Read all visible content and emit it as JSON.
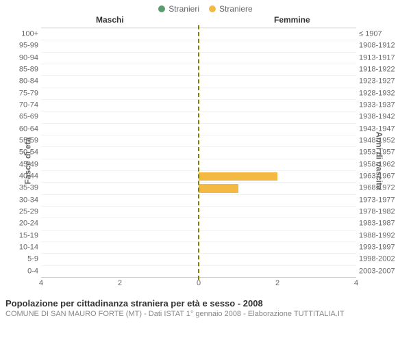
{
  "legend": {
    "male": {
      "label": "Stranieri",
      "color": "#5a9e6f"
    },
    "female": {
      "label": "Straniere",
      "color": "#f4b942"
    }
  },
  "headers": {
    "male": "Maschi",
    "female": "Femmine"
  },
  "axis_titles": {
    "left": "Fasce di età",
    "right": "Anni di nascita"
  },
  "chart": {
    "type": "population-pyramid",
    "x_max": 4,
    "x_ticks": [
      4,
      2,
      0,
      2,
      4
    ],
    "center_line_color": "#808000",
    "grid_color": "#f2f2f2",
    "background_color": "#ffffff",
    "bar_color_male": "#5a9e6f",
    "bar_color_female": "#f4b942",
    "label_fontsize": 11,
    "rows": [
      {
        "age": "100+",
        "birth": "≤ 1907",
        "m": 0,
        "f": 0
      },
      {
        "age": "95-99",
        "birth": "1908-1912",
        "m": 0,
        "f": 0
      },
      {
        "age": "90-94",
        "birth": "1913-1917",
        "m": 0,
        "f": 0
      },
      {
        "age": "85-89",
        "birth": "1918-1922",
        "m": 0,
        "f": 0
      },
      {
        "age": "80-84",
        "birth": "1923-1927",
        "m": 0,
        "f": 0
      },
      {
        "age": "75-79",
        "birth": "1928-1932",
        "m": 0,
        "f": 0
      },
      {
        "age": "70-74",
        "birth": "1933-1937",
        "m": 0,
        "f": 0
      },
      {
        "age": "65-69",
        "birth": "1938-1942",
        "m": 0,
        "f": 0
      },
      {
        "age": "60-64",
        "birth": "1943-1947",
        "m": 0,
        "f": 0
      },
      {
        "age": "55-59",
        "birth": "1948-1952",
        "m": 0,
        "f": 0
      },
      {
        "age": "50-54",
        "birth": "1953-1957",
        "m": 0,
        "f": 0
      },
      {
        "age": "45-49",
        "birth": "1958-1962",
        "m": 0,
        "f": 0
      },
      {
        "age": "40-44",
        "birth": "1963-1967",
        "m": 0,
        "f": 2
      },
      {
        "age": "35-39",
        "birth": "1968-1972",
        "m": 0,
        "f": 1
      },
      {
        "age": "30-34",
        "birth": "1973-1977",
        "m": 0,
        "f": 0
      },
      {
        "age": "25-29",
        "birth": "1978-1982",
        "m": 0,
        "f": 0
      },
      {
        "age": "20-24",
        "birth": "1983-1987",
        "m": 0,
        "f": 0
      },
      {
        "age": "15-19",
        "birth": "1988-1992",
        "m": 0,
        "f": 0
      },
      {
        "age": "10-14",
        "birth": "1993-1997",
        "m": 0,
        "f": 0
      },
      {
        "age": "5-9",
        "birth": "1998-2002",
        "m": 0,
        "f": 0
      },
      {
        "age": "0-4",
        "birth": "2003-2007",
        "m": 0,
        "f": 0
      }
    ]
  },
  "footer": {
    "title": "Popolazione per cittadinanza straniera per età e sesso - 2008",
    "subtitle": "COMUNE DI SAN MAURO FORTE (MT) - Dati ISTAT 1° gennaio 2008 - Elaborazione TUTTITALIA.IT"
  }
}
